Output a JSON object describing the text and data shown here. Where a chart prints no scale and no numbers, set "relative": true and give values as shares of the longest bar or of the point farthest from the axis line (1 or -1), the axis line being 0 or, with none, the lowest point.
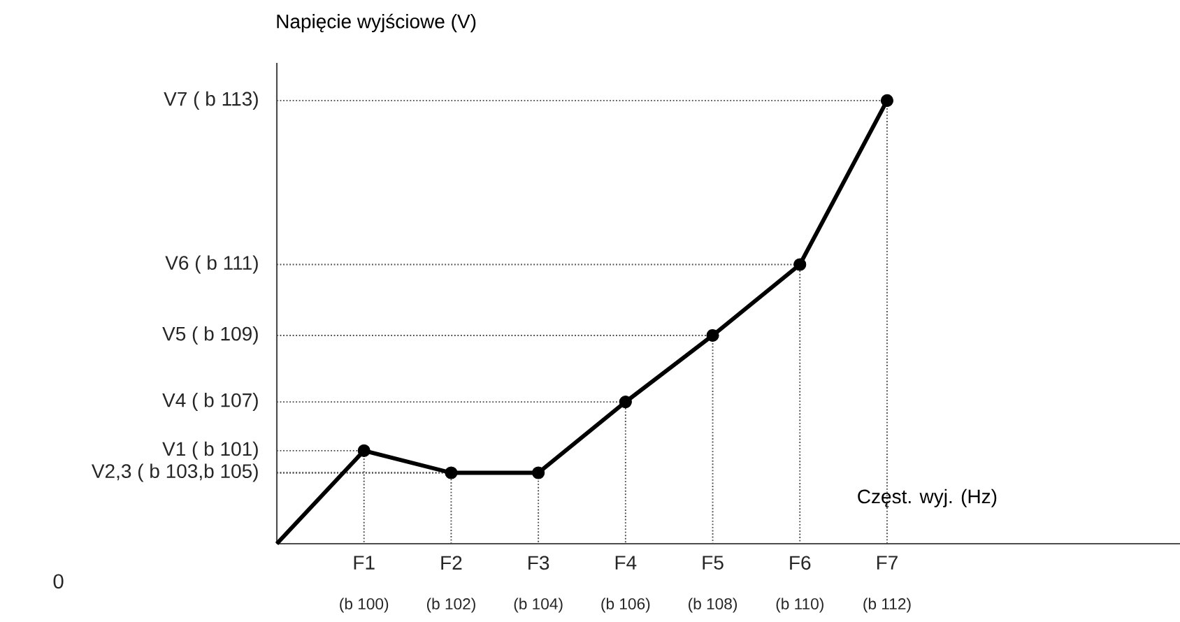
{
  "chart_data": {
    "type": "line",
    "relative": true,
    "xlabel": "Częst. wyj. (Hz)",
    "ylabel": "Napięcie wyjściowe (V)",
    "categories": [
      null,
      "F1",
      "F2",
      "F3",
      "F4",
      "F5",
      "F6",
      "F7"
    ],
    "values": [
      0,
      0.21,
      0.16,
      0.16,
      0.32,
      0.47,
      0.63,
      1.0
    ],
    "color": "#000000",
    "marker": "circle",
    "line_style": "solid",
    "annotations": [
      "0",
      "V2,3 ( b 103,b 105)",
      "V1 ( b 101)",
      "V4 ( b 107)",
      "V5 ( b 109)",
      "V6 ( b 111)",
      "V7 ( b 113)",
      "(b 100)",
      "(b 102)",
      "(b 104)",
      "(b 106)",
      "(b 108)",
      "(b 110)",
      "(b 112)"
    ]
  }
}
